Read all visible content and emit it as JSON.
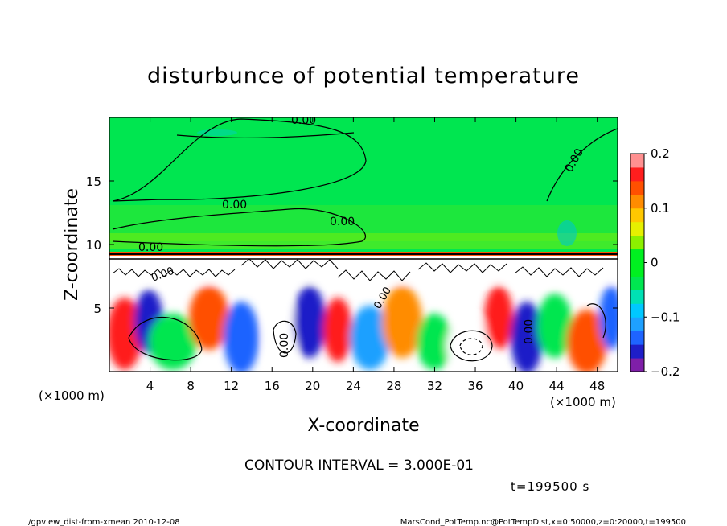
{
  "chart_data": {
    "type": "heatmap",
    "title": "disturbunce of potential temperature",
    "xlabel": "X-coordinate",
    "ylabel": "Z-coordinate",
    "x_unit": "(×1000 m)",
    "y_unit": "(×1000 m)",
    "xlim": [
      0,
      50
    ],
    "ylim": [
      0,
      20
    ],
    "x_ticks": [
      4,
      8,
      12,
      16,
      20,
      24,
      28,
      32,
      36,
      40,
      44,
      48
    ],
    "y_ticks": [
      5,
      10,
      15
    ],
    "colorbar": {
      "range": [
        -0.2,
        0.2
      ],
      "tick_values": [
        0.2,
        0.1,
        0,
        -0.1,
        -0.2
      ],
      "tick_labels": [
        "0.2",
        "0.1",
        "0",
        "−0.1",
        "−0.2"
      ],
      "colors": [
        "#7f1fa8",
        "#1e1ec8",
        "#1e64ff",
        "#1ea0ff",
        "#00c8ff",
        "#00e1b4",
        "#00e650",
        "#00f020",
        "#00f020",
        "#8cf000",
        "#e6f000",
        "#ffc800",
        "#ff8c00",
        "#ff5000",
        "#ff1e1e",
        "#ff9090"
      ]
    },
    "contour_labels": [
      "0.00",
      "0.00",
      "0.00",
      "0.00",
      "0.00",
      "0.00",
      "0.00",
      "0.00",
      "0.00"
    ],
    "contour_interval_text": "CONTOUR INTERVAL = 3.000E-01",
    "time_text": "t=199500 s"
  },
  "footer": {
    "left": "./gpview_dist-from-xmean  2010-12-08",
    "right": "MarsCond_PotTemp.nc@PotTempDist,x=0:50000,z=0:20000,t=199500"
  }
}
